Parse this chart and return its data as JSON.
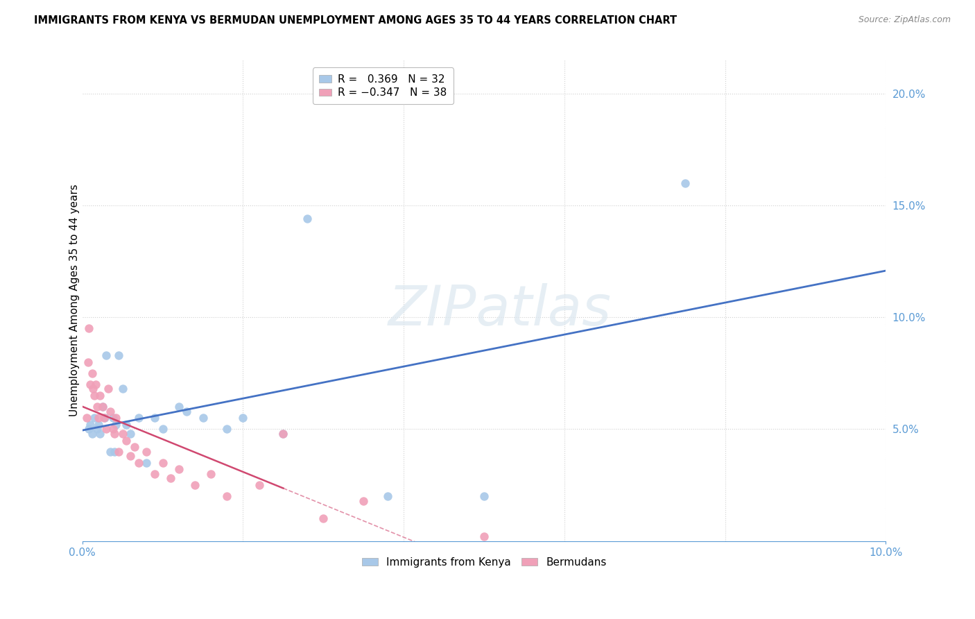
{
  "title": "IMMIGRANTS FROM KENYA VS BERMUDAN UNEMPLOYMENT AMONG AGES 35 TO 44 YEARS CORRELATION CHART",
  "source": "Source: ZipAtlas.com",
  "ylabel": "Unemployment Among Ages 35 to 44 years",
  "xlim": [
    0.0,
    0.1
  ],
  "ylim": [
    0.0,
    0.215
  ],
  "yticks": [
    0.05,
    0.1,
    0.15,
    0.2
  ],
  "ytick_labels": [
    "5.0%",
    "10.0%",
    "15.0%",
    "20.0%"
  ],
  "xtick_vals": [
    0.0,
    0.02,
    0.04,
    0.06,
    0.08,
    0.1
  ],
  "legend_label1": "Immigrants from Kenya",
  "legend_label2": "Bermudans",
  "watermark": "ZIPatlas",
  "blue_color": "#a8c8e8",
  "pink_color": "#f0a0b8",
  "blue_line_color": "#4472c4",
  "pink_line_color": "#d04870",
  "axis_color": "#5b9bd5",
  "grid_color": "#d0d0d0",
  "kenya_x": [
    0.0008,
    0.001,
    0.0012,
    0.0015,
    0.0018,
    0.002,
    0.0022,
    0.0025,
    0.0028,
    0.003,
    0.0035,
    0.0038,
    0.004,
    0.0042,
    0.0045,
    0.005,
    0.0055,
    0.006,
    0.007,
    0.008,
    0.009,
    0.01,
    0.012,
    0.013,
    0.015,
    0.018,
    0.02,
    0.025,
    0.028,
    0.038,
    0.05,
    0.075
  ],
  "kenya_y": [
    0.05,
    0.052,
    0.048,
    0.055,
    0.05,
    0.052,
    0.048,
    0.06,
    0.055,
    0.083,
    0.04,
    0.055,
    0.04,
    0.052,
    0.083,
    0.068,
    0.052,
    0.048,
    0.055,
    0.035,
    0.055,
    0.05,
    0.06,
    0.058,
    0.055,
    0.05,
    0.055,
    0.048,
    0.144,
    0.02,
    0.02,
    0.16
  ],
  "bermuda_x": [
    0.0005,
    0.0007,
    0.0008,
    0.001,
    0.0012,
    0.0013,
    0.0015,
    0.0017,
    0.0018,
    0.002,
    0.0022,
    0.0025,
    0.0027,
    0.003,
    0.0032,
    0.0035,
    0.0038,
    0.004,
    0.0042,
    0.0045,
    0.005,
    0.0055,
    0.006,
    0.0065,
    0.007,
    0.008,
    0.009,
    0.01,
    0.011,
    0.012,
    0.014,
    0.016,
    0.018,
    0.022,
    0.025,
    0.03,
    0.035,
    0.05
  ],
  "bermuda_y": [
    0.055,
    0.08,
    0.095,
    0.07,
    0.075,
    0.068,
    0.065,
    0.07,
    0.06,
    0.055,
    0.065,
    0.06,
    0.055,
    0.05,
    0.068,
    0.058,
    0.05,
    0.048,
    0.055,
    0.04,
    0.048,
    0.045,
    0.038,
    0.042,
    0.035,
    0.04,
    0.03,
    0.035,
    0.028,
    0.032,
    0.025,
    0.03,
    0.02,
    0.025,
    0.048,
    0.01,
    0.018,
    0.002
  ],
  "pink_line_solid_end_x": 0.025,
  "pink_line_dashed_start_x": 0.025
}
